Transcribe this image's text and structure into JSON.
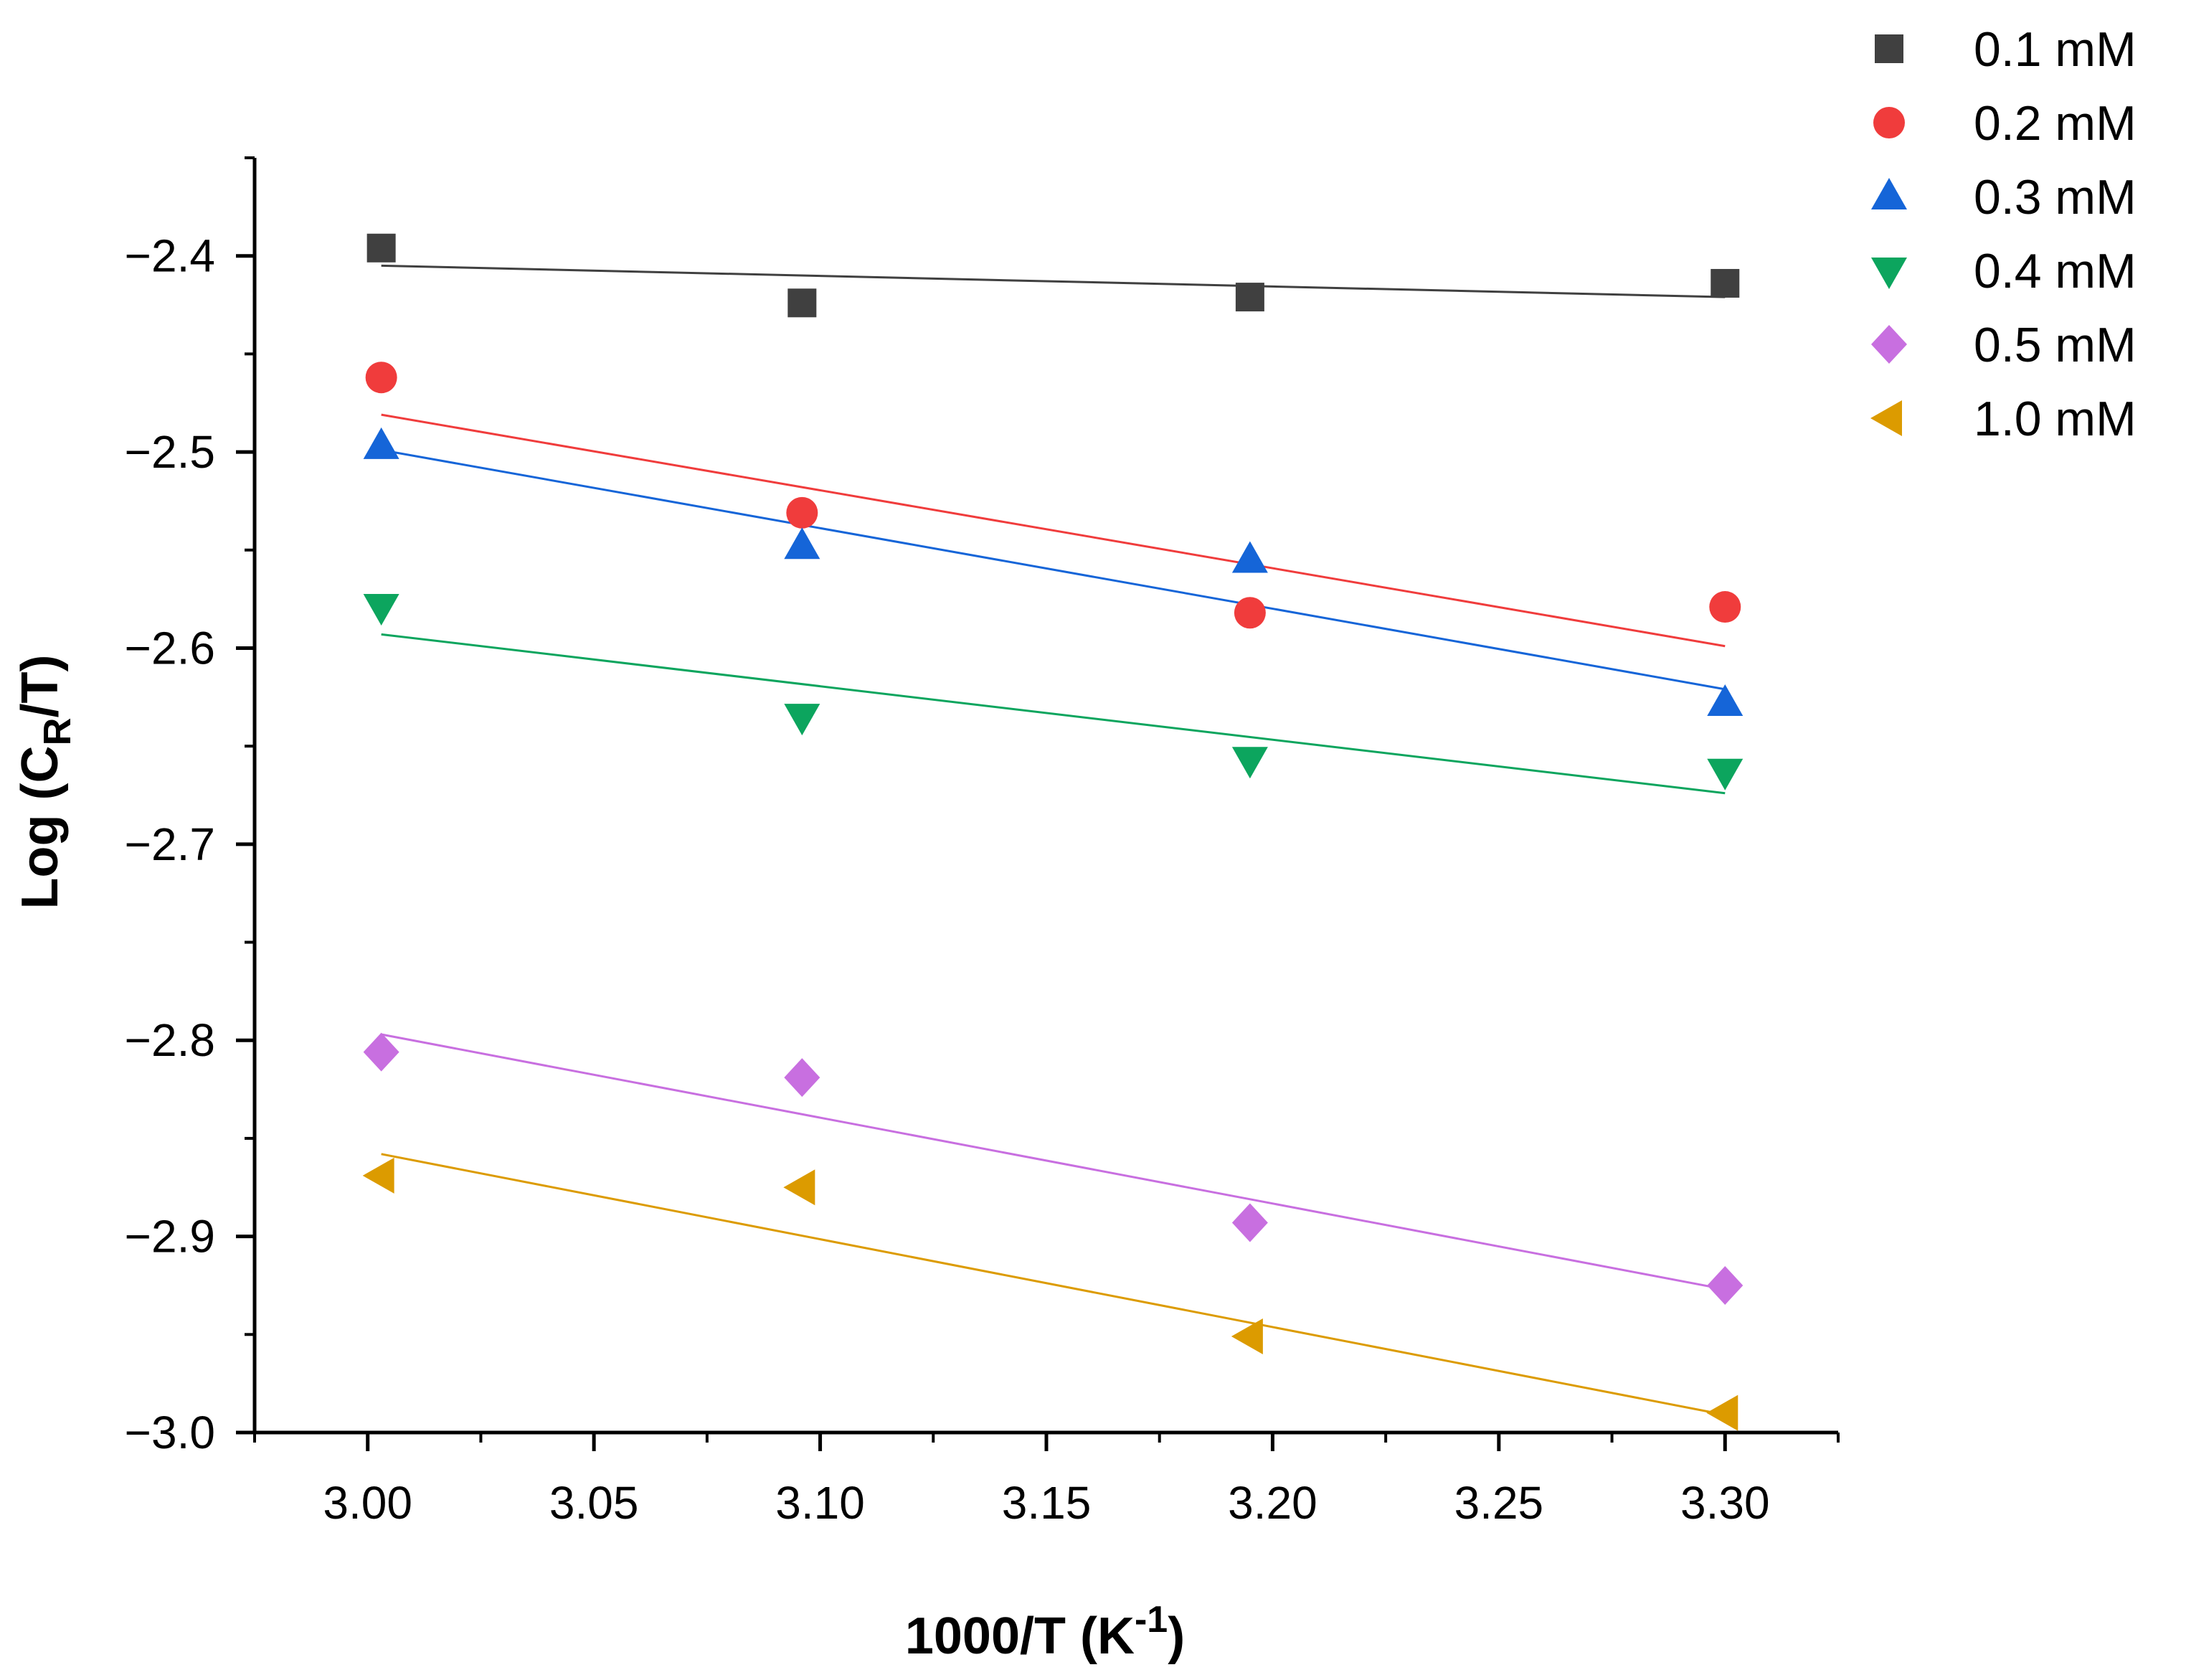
{
  "chart_data": {
    "type": "scatter",
    "title": "",
    "xlabel": "1000/T (K",
    "xlabel_sup": "-1",
    "xlabel_close": ")",
    "ylabel_pre": "Log (C",
    "ylabel_sub": "R",
    "ylabel_post": "/T)",
    "xlim": [
      2.975,
      3.325
    ],
    "ylim": [
      -3.0,
      -2.35
    ],
    "x_ticks": [
      3.0,
      3.05,
      3.1,
      3.15,
      3.2,
      3.25,
      3.3
    ],
    "x_tick_labels": [
      "3.00",
      "3.05",
      "3.10",
      "3.15",
      "3.20",
      "3.25",
      "3.30"
    ],
    "y_ticks": [
      -2.4,
      -2.5,
      -2.6,
      -2.7,
      -2.8,
      -2.9,
      -3.0
    ],
    "y_tick_labels": [
      "−2.4",
      "−2.5",
      "−2.6",
      "−2.7",
      "−2.8",
      "−2.9",
      "−3.0"
    ],
    "x": [
      3.003,
      3.096,
      3.195,
      3.3
    ],
    "legend_position": "top-right",
    "series": [
      {
        "name": "0.1 mM",
        "marker": "square",
        "color": "#404040",
        "values": [
          -2.396,
          -2.424,
          -2.421,
          -2.414
        ],
        "fit": [
          -2.405,
          -2.421
        ]
      },
      {
        "name": "0.2 mM",
        "marker": "circle",
        "color": "#f03c3c",
        "values": [
          -2.462,
          -2.531,
          -2.582,
          -2.579
        ],
        "fit": [
          -2.481,
          -2.599
        ]
      },
      {
        "name": "0.3 mM",
        "marker": "triangle-up",
        "color": "#1565d8",
        "values": [
          -2.497,
          -2.548,
          -2.555,
          -2.628
        ],
        "fit": [
          -2.499,
          -2.621
        ]
      },
      {
        "name": "0.4 mM",
        "marker": "triangle-down",
        "color": "#0ca55e",
        "values": [
          -2.579,
          -2.635,
          -2.657,
          -2.663
        ],
        "fit": [
          -2.593,
          -2.674
        ]
      },
      {
        "name": "0.5 mM",
        "marker": "diamond",
        "color": "#c86fe0",
        "values": [
          -2.806,
          -2.819,
          -2.893,
          -2.925
        ],
        "fit": [
          -2.797,
          -2.927
        ]
      },
      {
        "name": "1.0 mM",
        "marker": "triangle-left",
        "color": "#dc9b00",
        "values": [
          -2.869,
          -2.875,
          -2.951,
          -2.99
        ],
        "fit": [
          -2.858,
          -2.991
        ]
      }
    ]
  }
}
